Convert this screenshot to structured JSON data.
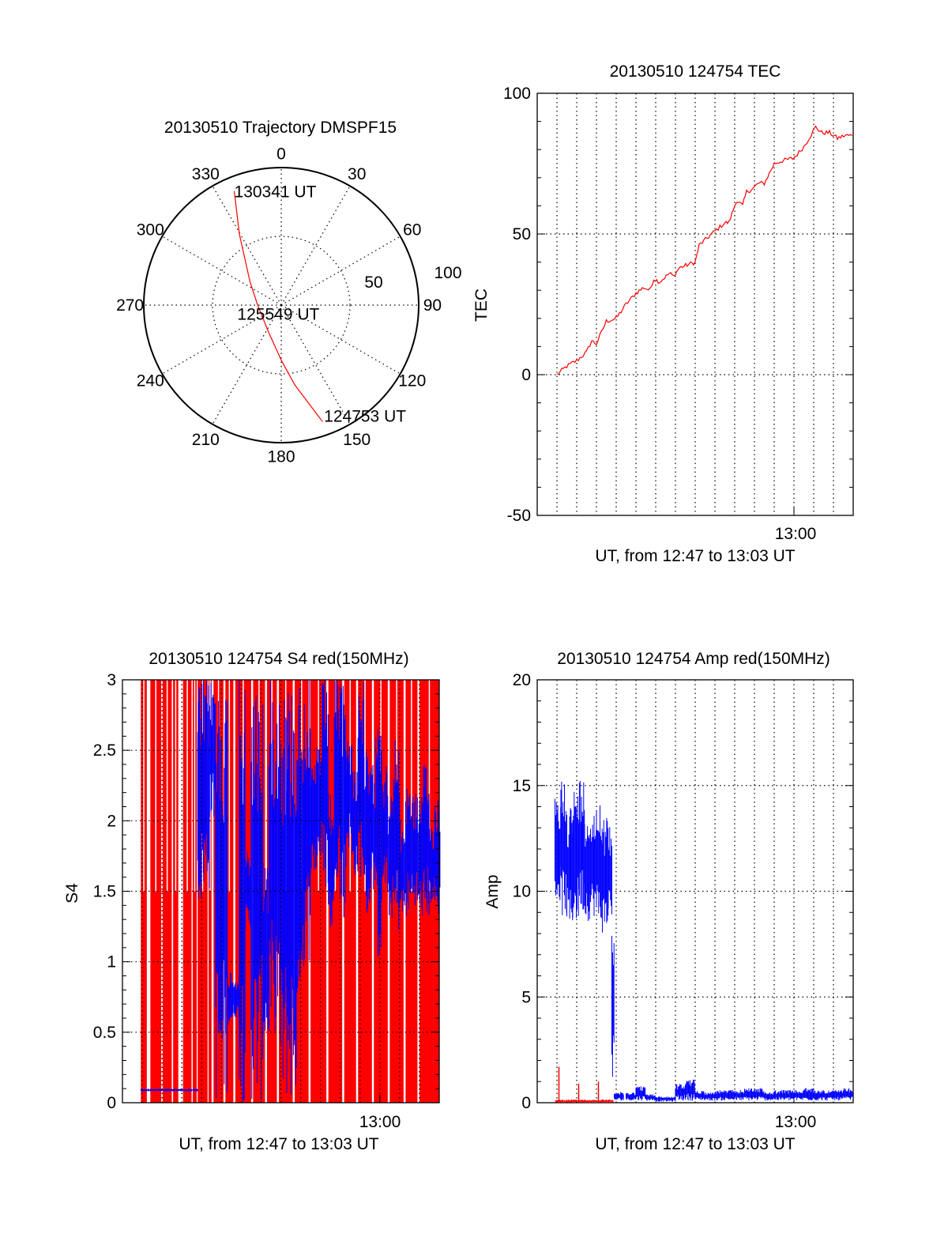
{
  "colors": {
    "red": "#ff0000",
    "blue": "#0000ff",
    "axis": "#000000"
  },
  "chart_data": [
    {
      "id": "trajectory",
      "type": "polar",
      "title": "20130510 Trajectory DMSPF15",
      "angle_labels": [
        "0",
        "30",
        "60",
        "90",
        "120",
        "150",
        "180",
        "210",
        "240",
        "270",
        "300",
        "330"
      ],
      "radial_labels": [
        "50",
        "100"
      ],
      "r_max": 100,
      "r_grid": [
        50
      ],
      "track_points_az_r": [
        [
          337.6,
          89.7
        ],
        [
          329.4,
          59.7
        ],
        [
          306.6,
          28.3
        ],
        [
          268.6,
          17
        ],
        [
          205.5,
          21.6
        ],
        [
          179.6,
          40.6
        ],
        [
          170.4,
          58.7
        ],
        [
          160.5,
          89.8
        ]
      ],
      "annotations": [
        {
          "text": "130341 UT",
          "az": 337.6,
          "r": 89.7
        },
        {
          "text": "125549 UT",
          "az": 268.6,
          "r": 17
        },
        {
          "text": "124753 UT",
          "az": 160.5,
          "r": 89.8
        }
      ]
    },
    {
      "id": "tec",
      "type": "line",
      "title": "20130510 124754 TEC",
      "ylabel": "TEC",
      "xlabel": "UT, from 12:47 to 13:03 UT",
      "xtick_label": "13:00",
      "xtick_minute": 13,
      "xlim_minutes_after_1247": [
        0,
        16
      ],
      "ylim": [
        -50,
        100
      ],
      "yticks": [
        {
          "v": -50,
          "label": "-50"
        },
        {
          "v": 0,
          "label": "0"
        },
        {
          "v": 50,
          "label": "50"
        },
        {
          "v": 100,
          "label": "100"
        }
      ],
      "ygrid": [
        0,
        50
      ],
      "yminor_step": 10,
      "series": [
        {
          "name": "TEC",
          "color": "red",
          "points": [
            [
              1.0,
              0
            ],
            [
              1.5,
              3
            ],
            [
              2.0,
              5
            ],
            [
              2.5,
              8
            ],
            [
              2.75,
              12
            ],
            [
              3.0,
              11
            ],
            [
              3.5,
              19
            ],
            [
              4.0,
              20
            ],
            [
              4.5,
              25
            ],
            [
              5.0,
              29
            ],
            [
              5.4,
              31
            ],
            [
              5.7,
              30
            ],
            [
              5.9,
              34
            ],
            [
              6.2,
              33
            ],
            [
              6.7,
              36
            ],
            [
              6.9,
              35
            ],
            [
              7.2,
              38
            ],
            [
              8.0,
              40
            ],
            [
              8.2,
              46
            ],
            [
              9.0,
              51
            ],
            [
              9.5,
              54
            ],
            [
              9.7,
              54
            ],
            [
              10.1,
              62
            ],
            [
              10.4,
              60
            ],
            [
              10.6,
              65
            ],
            [
              10.9,
              66
            ],
            [
              11.2,
              68
            ],
            [
              11.5,
              68
            ],
            [
              12.0,
              75
            ],
            [
              12.4,
              76
            ],
            [
              13.0,
              77
            ],
            [
              13.5,
              81
            ],
            [
              14.1,
              88
            ],
            [
              14.4,
              86
            ],
            [
              14.8,
              86
            ],
            [
              15.2,
              84
            ],
            [
              15.6,
              85
            ],
            [
              15.95,
              85
            ]
          ]
        }
      ]
    },
    {
      "id": "s4",
      "type": "bar-envelope",
      "title": "20130510 124754 S4 red(150MHz)",
      "ylabel": "S4",
      "xlabel": "UT, from 12:47 to 13:03 UT",
      "xtick_label": "13:00",
      "xtick_minute": 13,
      "xlim_minutes_after_1247": [
        0,
        16
      ],
      "ylim": [
        0,
        3
      ],
      "yticks": [
        {
          "v": 0,
          "label": "0"
        },
        {
          "v": 0.5,
          "label": "0.5"
        },
        {
          "v": 1,
          "label": "1"
        },
        {
          "v": 1.5,
          "label": "1.5"
        },
        {
          "v": 2,
          "label": "2"
        },
        {
          "v": 2.5,
          "label": "2.5"
        },
        {
          "v": 3,
          "label": "3"
        }
      ],
      "ygrid": [
        0.5,
        1,
        1.5,
        2,
        2.5
      ],
      "yminor_step": 0.1,
      "red_segments_start_end_top": [
        [
          0.93,
          1.23,
          3
        ],
        [
          1.41,
          1.96,
          3
        ],
        [
          2.03,
          2.49,
          3
        ],
        [
          2.56,
          2.82,
          3
        ],
        [
          3.06,
          3.49,
          3
        ],
        [
          3.55,
          3.75,
          3
        ],
        [
          3.8,
          4.3,
          3
        ],
        [
          4.35,
          4.5,
          3
        ],
        [
          4.6,
          5.1,
          3
        ],
        [
          5.2,
          5.6,
          3
        ],
        [
          5.7,
          6.5,
          3
        ],
        [
          6.6,
          7.2,
          3
        ],
        [
          7.3,
          7.8,
          3
        ],
        [
          7.9,
          8.6,
          3
        ],
        [
          8.7,
          9.4,
          3
        ],
        [
          9.5,
          10.3,
          3
        ],
        [
          10.4,
          11.1,
          3
        ],
        [
          11.2,
          11.8,
          3
        ],
        [
          11.9,
          12.6,
          3
        ],
        [
          12.7,
          13.4,
          3
        ],
        [
          13.5,
          14.2,
          3
        ],
        [
          14.3,
          14.9,
          3
        ],
        [
          15.0,
          16.0,
          3
        ]
      ],
      "blue_bins_t_lo_hi": [
        [
          0.93,
          0.08,
          0.1
        ],
        [
          1.23,
          0.08,
          0.1
        ],
        [
          1.53,
          0.08,
          0.1
        ],
        [
          1.83,
          0.08,
          0.1
        ],
        [
          2.13,
          0.08,
          0.1
        ],
        [
          2.43,
          0.08,
          0.1
        ],
        [
          2.73,
          0.08,
          0.1
        ],
        [
          3.03,
          0.08,
          0.1
        ],
        [
          3.33,
          0.08,
          0.1
        ],
        [
          3.5,
          0.08,
          0.1
        ],
        [
          3.8,
          1.4,
          3
        ],
        [
          4.1,
          1.5,
          3
        ],
        [
          4.4,
          2.0,
          3
        ],
        [
          4.7,
          0,
          3
        ],
        [
          5.0,
          0,
          3
        ],
        [
          5.3,
          0.55,
          0.95
        ],
        [
          5.6,
          0.6,
          0.9
        ],
        [
          5.9,
          0,
          3
        ],
        [
          6.2,
          1.2,
          1.8
        ],
        [
          6.5,
          0,
          3
        ],
        [
          6.8,
          0,
          3
        ],
        [
          7.1,
          0.4,
          1.8
        ],
        [
          7.4,
          0.4,
          3
        ],
        [
          7.7,
          0.5,
          3
        ],
        [
          8.0,
          0,
          3
        ],
        [
          8.3,
          0,
          3
        ],
        [
          8.6,
          0,
          3
        ],
        [
          8.9,
          0.8,
          3
        ],
        [
          9.2,
          1.0,
          3
        ],
        [
          9.5,
          1.6,
          2.4
        ],
        [
          9.8,
          1.7,
          2.6
        ],
        [
          10.1,
          1.5,
          3
        ],
        [
          10.4,
          1.2,
          2.2
        ],
        [
          10.7,
          1.6,
          3
        ],
        [
          11.0,
          1.3,
          3
        ],
        [
          11.3,
          1.8,
          2.6
        ],
        [
          11.6,
          1.6,
          2.4
        ],
        [
          11.9,
          1.6,
          3
        ],
        [
          12.2,
          1.3,
          2.5
        ],
        [
          12.5,
          1.5,
          2.4
        ],
        [
          12.8,
          1.0,
          3
        ],
        [
          13.1,
          1.5,
          2.4
        ],
        [
          13.4,
          1.3,
          2.2
        ],
        [
          13.7,
          1.2,
          2.6
        ],
        [
          14.0,
          1.3,
          2.0
        ],
        [
          14.3,
          1.3,
          2.3
        ],
        [
          14.6,
          1.4,
          2.2
        ],
        [
          14.9,
          1.3,
          2.2
        ],
        [
          15.2,
          1.3,
          2.4
        ],
        [
          15.5,
          1.4,
          2.0
        ],
        [
          15.75,
          1.3,
          2.2
        ]
      ]
    },
    {
      "id": "amp",
      "type": "bar-envelope",
      "title": "20130510 124754 Amp red(150MHz)",
      "ylabel": "Amp",
      "xlabel": "UT, from 12:47 to 13:03 UT",
      "xtick_label": "13:00",
      "xtick_minute": 13,
      "xlim_minutes_after_1247": [
        0,
        16
      ],
      "ylim": [
        0,
        20
      ],
      "yticks": [
        {
          "v": 0,
          "label": "0"
        },
        {
          "v": 5,
          "label": "5"
        },
        {
          "v": 10,
          "label": "10"
        },
        {
          "v": 15,
          "label": "15"
        },
        {
          "v": 20,
          "label": "20"
        }
      ],
      "ygrid": [
        5,
        10,
        15
      ],
      "yminor_step": 1,
      "blue_bins_t_lo_hi": [
        [
          0.9,
          9.5,
          14.4
        ],
        [
          1.2,
          8.8,
          15.5
        ],
        [
          1.5,
          8.0,
          14.2
        ],
        [
          1.8,
          8.5,
          14.9
        ],
        [
          2.1,
          9.0,
          15.4
        ],
        [
          2.4,
          8.6,
          14.0
        ],
        [
          2.7,
          8.8,
          13.8
        ],
        [
          3.0,
          8.3,
          14.6
        ],
        [
          3.3,
          8.0,
          13.5
        ],
        [
          3.6,
          8.8,
          13.2
        ],
        [
          3.78,
          0,
          10
        ],
        [
          3.9,
          0.1,
          0.5
        ],
        [
          4.5,
          0.1,
          0.5
        ],
        [
          5.0,
          0.1,
          0.8
        ],
        [
          5.5,
          0.1,
          0.4
        ],
        [
          6.0,
          0.05,
          0.3
        ],
        [
          6.5,
          0.05,
          0.3
        ],
        [
          7.0,
          0.1,
          0.9
        ],
        [
          7.5,
          0.1,
          1.1
        ],
        [
          8.0,
          0.1,
          0.6
        ],
        [
          8.5,
          0.1,
          0.5
        ],
        [
          9.0,
          0.1,
          0.6
        ],
        [
          9.5,
          0.1,
          0.6
        ],
        [
          10.0,
          0.1,
          0.6
        ],
        [
          10.5,
          0.1,
          0.7
        ],
        [
          11.0,
          0.1,
          0.7
        ],
        [
          11.5,
          0.1,
          0.5
        ],
        [
          12.0,
          0.1,
          0.6
        ],
        [
          12.5,
          0.1,
          0.6
        ],
        [
          13.0,
          0.1,
          0.6
        ],
        [
          13.5,
          0.1,
          0.7
        ],
        [
          14.0,
          0.1,
          0.6
        ],
        [
          14.5,
          0.1,
          0.6
        ],
        [
          15.0,
          0.1,
          0.6
        ],
        [
          15.5,
          0.1,
          0.7
        ]
      ],
      "red_bins_t_lo_hi": [
        [
          0.93,
          0,
          0.15
        ],
        [
          1.2,
          0,
          0.15
        ],
        [
          1.5,
          0,
          0.15
        ],
        [
          1.8,
          0,
          0.15
        ],
        [
          2.1,
          0,
          0.15
        ],
        [
          2.4,
          0,
          0.15
        ],
        [
          2.7,
          0,
          0.15
        ],
        [
          3.0,
          0,
          0.15
        ],
        [
          3.3,
          0,
          0.15
        ],
        [
          3.55,
          0,
          0.15
        ]
      ],
      "red_spikes_t_v": [
        [
          1.1,
          1.7
        ],
        [
          2.1,
          0.9
        ],
        [
          3.1,
          1.0
        ]
      ]
    }
  ]
}
